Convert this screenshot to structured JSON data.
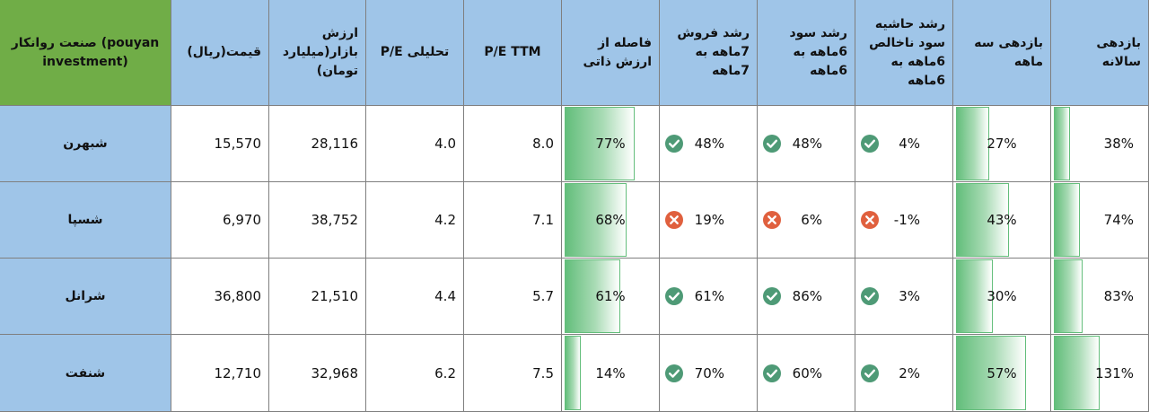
{
  "colors": {
    "header_bg": "#9fc5e8",
    "corner_bg": "#70ad47",
    "bar_green": "#63be7b",
    "check_green": "#4e9a76",
    "cross_red": "#e0603e"
  },
  "headers": {
    "industry": "صنعت روانکار (pouyan investment)",
    "price": "قیمت(ریال)",
    "market_cap": "ارزش بازار(میلیارد تومان)",
    "pe_analytic": "P/E تحلیلی",
    "pe_ttm": "P/E TTM",
    "intrinsic_gap": "فاصله از ارزش ذاتی",
    "sales_growth": "رشد فروش 7ماهه به 7ماهه",
    "profit_growth": "رشد سود 6ماهه به 6ماهه",
    "margin_growth": "رشد حاشیه سود ناخالص 6ماهه به 6ماهه",
    "return_3m": "بازدهی سه ماهه",
    "return_annual": "بازدهی سالانه"
  },
  "rows": [
    {
      "name": "شبهرن",
      "price": "15,570",
      "market_cap": "28,116",
      "pe_analytic": "4.0",
      "pe_ttm": "8.0",
      "intrinsic_gap": "77%",
      "intrinsic_gap_value": 77,
      "sales_growth": "48%",
      "sales_icon": "check-icon",
      "profit_growth": "48%",
      "profit_icon": "check-icon",
      "margin_growth": "4%",
      "margin_icon": "check-icon",
      "return_3m": "27%",
      "return_3m_value": 27,
      "return_annual": "38%",
      "return_annual_value": 38
    },
    {
      "name": "شسپا",
      "price": "6,970",
      "market_cap": "38,752",
      "pe_analytic": "4.2",
      "pe_ttm": "7.1",
      "intrinsic_gap": "68%",
      "intrinsic_gap_value": 68,
      "sales_growth": "19%",
      "sales_icon": "cross-icon",
      "profit_growth": "6%",
      "profit_icon": "cross-icon",
      "margin_growth": "-1%",
      "margin_icon": "cross-icon",
      "return_3m": "43%",
      "return_3m_value": 43,
      "return_annual": "74%",
      "return_annual_value": 74
    },
    {
      "name": "شرانل",
      "price": "36,800",
      "market_cap": "21,510",
      "pe_analytic": "4.4",
      "pe_ttm": "5.7",
      "intrinsic_gap": "61%",
      "intrinsic_gap_value": 61,
      "sales_growth": "61%",
      "sales_icon": "check-icon",
      "profit_growth": "86%",
      "profit_icon": "check-icon",
      "margin_growth": "3%",
      "margin_icon": "check-icon",
      "return_3m": "30%",
      "return_3m_value": 30,
      "return_annual": "83%",
      "return_annual_value": 83
    },
    {
      "name": "شنفت",
      "price": "12,710",
      "market_cap": "32,968",
      "pe_analytic": "6.2",
      "pe_ttm": "7.5",
      "intrinsic_gap": "14%",
      "intrinsic_gap_value": 14,
      "sales_growth": "70%",
      "sales_icon": "check-icon",
      "profit_growth": "60%",
      "profit_icon": "check-icon",
      "margin_growth": "2%",
      "margin_icon": "check-icon",
      "return_3m": "57%",
      "return_3m_value": 57,
      "return_annual": "131%",
      "return_annual_value": 131
    }
  ]
}
